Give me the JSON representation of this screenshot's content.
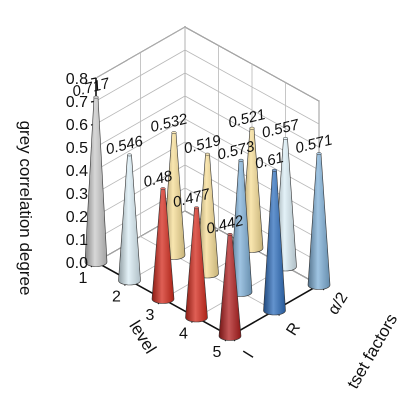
{
  "chart_data": {
    "type": "3d-cone",
    "zlabel": "grey correlation degree",
    "xlabel": "level",
    "ylabel": "tset factors",
    "zlim": [
      0.0,
      0.8
    ],
    "zticks": [
      "0.0",
      "0.1",
      "0.2",
      "0.3",
      "0.4",
      "0.5",
      "0.6",
      "0.7",
      "0.8"
    ],
    "levels": [
      "1",
      "2",
      "3",
      "4",
      "5"
    ],
    "factors": [
      "l",
      "R",
      "α/2"
    ],
    "grid": true,
    "points": [
      {
        "level": "1",
        "factor": "l",
        "value": 0.717,
        "label": "0.717",
        "color": "#c9c9c9"
      },
      {
        "level": "2",
        "factor": "l",
        "value": 0.546,
        "label": "0.546",
        "color": "#dbeef6"
      },
      {
        "level": "3",
        "factor": "l",
        "value": 0.48,
        "label": "0.48",
        "color": "#d42a1c"
      },
      {
        "level": "4",
        "factor": "l",
        "value": 0.477,
        "label": "0.477",
        "color": "#d42a1c"
      },
      {
        "level": "5",
        "factor": "l",
        "value": 0.442,
        "label": "0.442",
        "color": "#b01e1e"
      },
      {
        "level": "2",
        "factor": "R",
        "value": 0.532,
        "label": "0.532",
        "color": "#f7de96"
      },
      {
        "level": "3",
        "factor": "R",
        "value": 0.519,
        "label": "0.519",
        "color": "#f7de96"
      },
      {
        "level": "4",
        "factor": "R",
        "value": 0.573,
        "label": "0.573",
        "color": "#7fb0d8"
      },
      {
        "level": "5",
        "factor": "R",
        "value": 0.61,
        "label": "0.61",
        "color": "#2f6fbe"
      },
      {
        "level": "3",
        "factor": "α/2",
        "value": 0.521,
        "label": "0.521",
        "color": "#f7de96"
      },
      {
        "level": "4",
        "factor": "α/2",
        "value": 0.557,
        "label": "0.557",
        "color": "#dbeef6"
      },
      {
        "level": "5",
        "factor": "α/2",
        "value": 0.571,
        "label": "0.571",
        "color": "#7fb0d8"
      }
    ]
  }
}
